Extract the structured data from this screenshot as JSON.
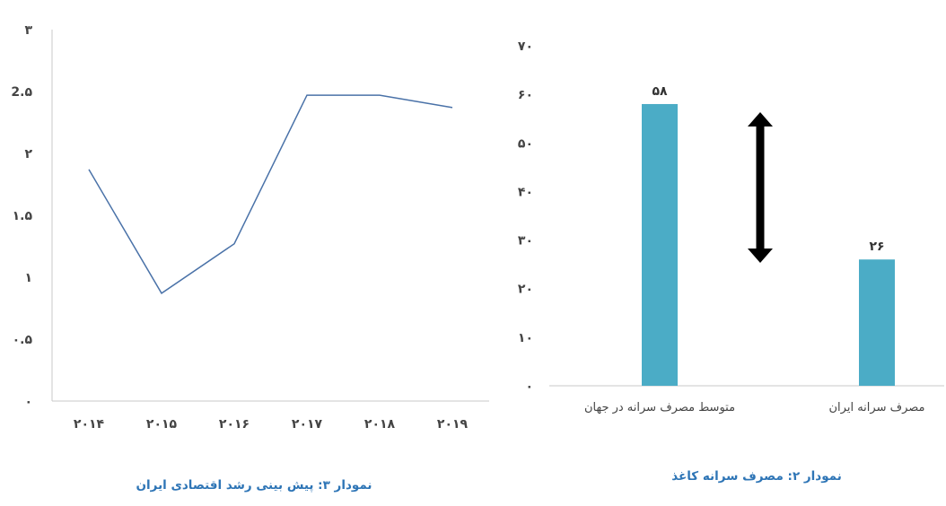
{
  "chart_data": [
    {
      "type": "line",
      "title": "",
      "caption": "نمودار ۳: پیش بینی رشد اقتصادی ایران",
      "xlabel": "",
      "ylabel": "",
      "categories": [
        "۲۰۱۴",
        "۲۰۱۵",
        "۲۰۱۶",
        "۲۰۱۷",
        "۲۰۱۸",
        "۲۰۱۹"
      ],
      "values": [
        1.87,
        0.87,
        1.27,
        2.47,
        2.47,
        2.37
      ],
      "ylim": [
        0,
        3
      ],
      "yticks": [
        0,
        0.5,
        1,
        1.5,
        2,
        2.5,
        3
      ],
      "ytick_labels": [
        "۰",
        "۰.۵",
        "۱",
        "۱.۵",
        "۲",
        "2.۵",
        "۳"
      ],
      "grid": false,
      "line_color": "#4a72a8"
    },
    {
      "type": "bar",
      "title": "",
      "caption": "نمودار ۲: مصرف سرانه کاغذ",
      "xlabel": "",
      "ylabel": "",
      "categories": [
        "متوسط مصرف سرانه در جهان",
        "مصرف سرانه ایران"
      ],
      "values": [
        58,
        26
      ],
      "data_labels": [
        "۵۸",
        "۲۶"
      ],
      "ylim": [
        0,
        70
      ],
      "yticks": [
        0,
        10,
        20,
        30,
        40,
        50,
        60,
        70
      ],
      "ytick_labels": [
        "۰",
        "۱۰",
        "۲۰",
        "۳۰",
        "۴۰",
        "۵۰",
        "۶۰",
        "۷۰"
      ],
      "grid": false,
      "bar_color": "#4bacc6",
      "annotation": "double-headed-arrow"
    }
  ]
}
